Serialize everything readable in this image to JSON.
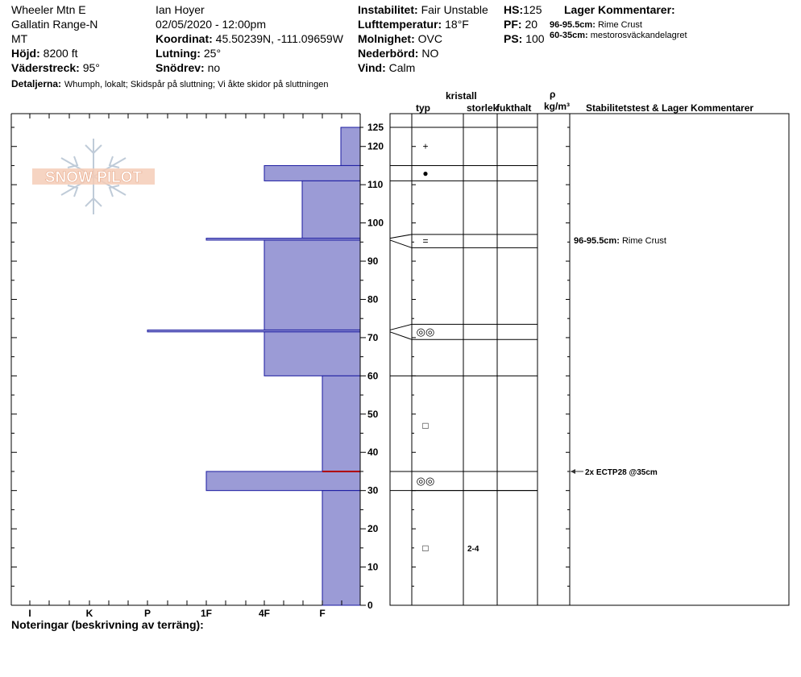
{
  "header": {
    "location": "Wheeler Mtn E",
    "range": "Gallatin Range-N",
    "state": "MT",
    "elevation_label": "Höjd:",
    "elevation_value": "8200 ft",
    "aspect_label": "Väderstreck:",
    "aspect_value": "95°",
    "observer": "Ian Hoyer",
    "datetime": "02/05/2020 - 12:00pm",
    "coord_label": "Koordinat:",
    "coord_value": "45.50239N, -111.09659W",
    "slope_label": "Lutning:",
    "slope_value": "25°",
    "wind_loading_label": "Snödrev:",
    "wind_loading_value": "no",
    "stability_label": "Instabilitet:",
    "stability_value": "Fair Unstable",
    "air_temp_label": "Lufttemperatur:",
    "air_temp_value": "18°F",
    "sky_label": "Molnighet:",
    "sky_value": "OVC",
    "precip_label": "Nederbörd:",
    "precip_value": "NO",
    "wind_label": "Vind:",
    "wind_value": "Calm",
    "hs_label": "HS:",
    "hs_value": "125",
    "pf_label": "PF:",
    "pf_value": "20",
    "ps_label": "PS:",
    "ps_value": "100",
    "layer_comments_title": "Lager Kommentarer:",
    "layer_comment_1_depth": "96-95.5cm:",
    "layer_comment_1_text": "Rime Crust",
    "layer_comment_2_depth": "60-35cm:",
    "layer_comment_2_text": "mestorosväckandelagret",
    "details_label": "Detaljerna:",
    "details_value": "Whumph, lokalt;  Skidspår på sluttning;  Vi åkte skidor på sluttningen"
  },
  "columns": {
    "crystal": "kristall",
    "type": "typ",
    "size": "storlek",
    "moisture": "fukthalt",
    "rho": "ρ",
    "density_unit": "kg/m³",
    "stability_title": "Stabilitetstest & Lager Kommentarer"
  },
  "footer": {
    "notes_label": "Noteringar (beskrivning av terräng):"
  },
  "watermark": "SNOW PILOT",
  "colors": {
    "layer_fill": "#9b9bd6",
    "layer_stroke": "#1a1aa0",
    "failure_line": "#b00000"
  },
  "chart_data": {
    "type": "bar",
    "orientation": "horizontal",
    "y_axis_unit": "cm",
    "ylim": [
      0,
      125
    ],
    "y_ticks": [
      0,
      10,
      20,
      30,
      40,
      50,
      60,
      70,
      80,
      90,
      100,
      110,
      120,
      125
    ],
    "hardness_categories": [
      "I",
      "K",
      "P",
      "1F",
      "4F",
      "F"
    ],
    "layers": [
      {
        "top": 125,
        "bottom": 115,
        "hardness": "F+"
      },
      {
        "top": 115,
        "bottom": 111,
        "hardness": "4F"
      },
      {
        "top": 111,
        "bottom": 96,
        "hardness": "4F+"
      },
      {
        "top": 96,
        "bottom": 95.5,
        "hardness": "1F"
      },
      {
        "top": 95.5,
        "bottom": 72,
        "hardness": "4F"
      },
      {
        "top": 72,
        "bottom": 71.5,
        "hardness": "P"
      },
      {
        "top": 71.5,
        "bottom": 60,
        "hardness": "4F"
      },
      {
        "top": 60,
        "bottom": 35,
        "hardness": "F"
      },
      {
        "top": 35,
        "bottom": 30,
        "hardness": "1F"
      },
      {
        "top": 30,
        "bottom": 0,
        "hardness": "F"
      }
    ],
    "grain_rows": [
      {
        "top": 125,
        "bottom": 115,
        "symbol": "+",
        "size": ""
      },
      {
        "top": 115,
        "bottom": 111,
        "symbol": "●",
        "size": ""
      },
      {
        "top": 97,
        "bottom": 93.5,
        "symbol": "=",
        "size": ""
      },
      {
        "top": 73.5,
        "bottom": 69.5,
        "symbol": "◎◎",
        "size": ""
      },
      {
        "top": 60,
        "bottom": 35,
        "symbol": "□",
        "size": ""
      },
      {
        "top": 35,
        "bottom": 30,
        "symbol": "◎◎",
        "size": ""
      },
      {
        "top": 30,
        "bottom": 0,
        "symbol": "□",
        "size": "2-4"
      }
    ],
    "comments": [
      {
        "depth": 95.5,
        "label": "96-95.5cm:",
        "text": "Rime Crust"
      }
    ],
    "stability_tests": [
      {
        "depth": 35,
        "text": "2x ECTP28 @35cm"
      }
    ],
    "failure_depth": 35
  }
}
